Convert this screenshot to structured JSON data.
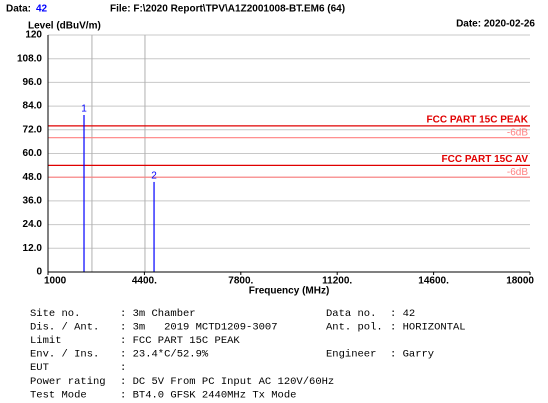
{
  "header": {
    "data_label": "Data:",
    "data_no": "42",
    "file": "File: F:\\2020 Report\\TPV\\A1Z2001008-BT.EM6 (64)",
    "date": "Date: 2020-02-26"
  },
  "chart_data": {
    "type": "stem",
    "ylabel": "Level (dBuV/m)",
    "xlabel": "Frequency (MHz)",
    "xlim": [
      1000,
      18000
    ],
    "ylim": [
      0,
      120
    ],
    "xticks": [
      1000,
      {
        "value": 4400,
        "label": "4400."
      },
      {
        "value": 7800,
        "label": "7800."
      },
      {
        "value": 11200,
        "label": "11200."
      },
      {
        "value": 14600,
        "label": "14600."
      },
      18000
    ],
    "yticks": [
      0,
      {
        "value": 12,
        "label": "12.0"
      },
      {
        "value": 24,
        "label": "24.0"
      },
      {
        "value": 36,
        "label": "36.0"
      },
      {
        "value": 48,
        "label": "48.0"
      },
      {
        "value": 60,
        "label": "60.0"
      },
      {
        "value": 72,
        "label": "72.0"
      },
      {
        "value": 84,
        "label": "84.0"
      },
      {
        "value": 96,
        "label": "96.0"
      },
      {
        "value": 108,
        "label": "108.0"
      },
      120
    ],
    "grid": true,
    "reference_lines_x": [
      2550,
      4420
    ],
    "markers": {
      "labels": [
        "1",
        "2"
      ],
      "x": [
        2270,
        4740
      ],
      "values": [
        79.5,
        45.6
      ],
      "color": "#0000ff"
    },
    "limits": [
      {
        "name": "FCC PART 15C PEAK",
        "value": 74,
        "color": "#e00000"
      },
      {
        "name": "-6dB",
        "value": 68,
        "color": "#ff8080"
      },
      {
        "name": "FCC PART 15C AV",
        "value": 54,
        "color": "#e00000"
      },
      {
        "name": "-6dB",
        "value": 48,
        "color": "#ff8080"
      }
    ]
  },
  "info": {
    "rows": [
      [
        "Site no.",
        ": 3m Chamber",
        "Data no.",
        ": 42"
      ],
      [
        "Dis. / Ant.",
        ": 3m   2019 MCTD1209-3007",
        "Ant. pol.",
        ": HORIZONTAL"
      ],
      [
        "Limit",
        ": FCC PART 15C PEAK"
      ],
      [
        "Env. / Ins.",
        ": 23.4*C/52.9%",
        "Engineer",
        ": Garry"
      ],
      [
        "EUT",
        ":"
      ],
      [
        "Power rating",
        ": DC 5V From PC Input AC 120V/60Hz"
      ],
      [
        "Test Mode",
        ": BT4.0 GFSK 2440MHz Tx Mode"
      ]
    ]
  }
}
